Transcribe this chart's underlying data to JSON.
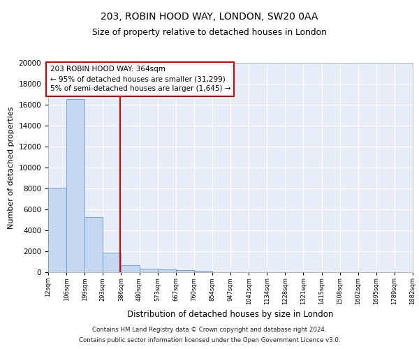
{
  "title1": "203, ROBIN HOOD WAY, LONDON, SW20 0AA",
  "title2": "Size of property relative to detached houses in London",
  "xlabel": "Distribution of detached houses by size in London",
  "ylabel": "Number of detached properties",
  "annotation_line1": "203 ROBIN HOOD WAY: 364sqm",
  "annotation_line2": "← 95% of detached houses are smaller (31,299)",
  "annotation_line3": "5% of semi-detached houses are larger (1,645) →",
  "bar_values": [
    8100,
    16500,
    5300,
    1850,
    700,
    350,
    280,
    200,
    150,
    0,
    0,
    0,
    0,
    0,
    0,
    0,
    0,
    0,
    0,
    0
  ],
  "categories": [
    "12sqm",
    "106sqm",
    "199sqm",
    "293sqm",
    "386sqm",
    "480sqm",
    "573sqm",
    "667sqm",
    "760sqm",
    "854sqm",
    "947sqm",
    "1041sqm",
    "1134sqm",
    "1228sqm",
    "1321sqm",
    "1415sqm",
    "1508sqm",
    "1602sqm",
    "1695sqm",
    "1789sqm",
    "1882sqm"
  ],
  "bar_color": "#c5d8f0",
  "bar_edge_color": "#6699cc",
  "red_line_color": "#cc0000",
  "panel_bg": "#e8eef8",
  "footer1": "Contains HM Land Registry data © Crown copyright and database right 2024.",
  "footer2": "Contains public sector information licensed under the Open Government Licence v3.0.",
  "ylim": [
    0,
    20000
  ],
  "yticks": [
    0,
    2000,
    4000,
    6000,
    8000,
    10000,
    12000,
    14000,
    16000,
    18000,
    20000
  ]
}
